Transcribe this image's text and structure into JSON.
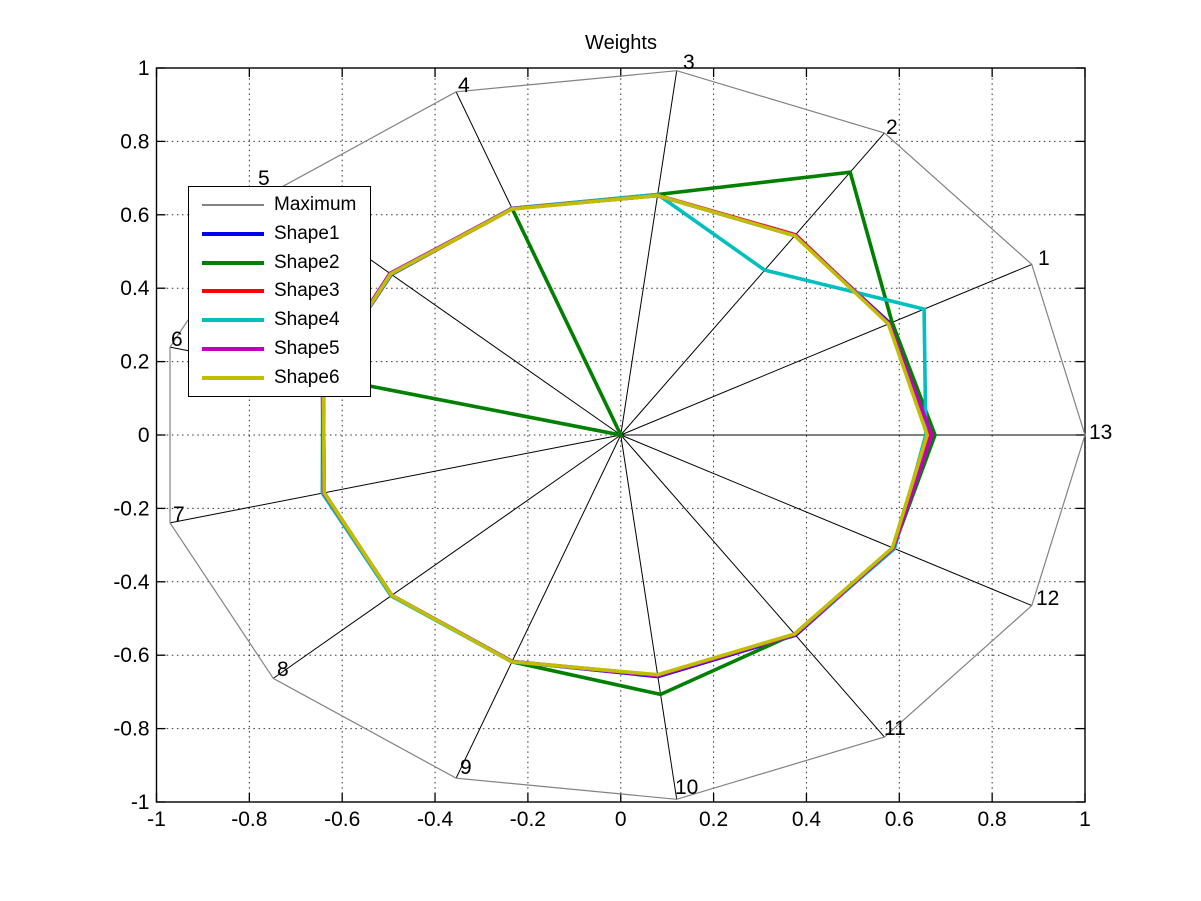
{
  "title": "Weights",
  "chart_data": {
    "type": "radar",
    "title": "Weights",
    "xlabel": "",
    "ylabel": "",
    "xlim": [
      -1,
      1
    ],
    "ylim": [
      -1,
      1
    ],
    "grid": true,
    "xticks": [
      "-1",
      "-0.8",
      "-0.6",
      "-0.4",
      "-0.2",
      "0",
      "0.2",
      "0.4",
      "0.6",
      "0.8",
      "1"
    ],
    "yticks": [
      "1",
      "0.8",
      "0.6",
      "0.4",
      "0.2",
      "0",
      "-0.2",
      "-0.4",
      "-0.6",
      "-0.8",
      "-1"
    ],
    "spoke_labels": [
      "1",
      "2",
      "3",
      "4",
      "5",
      "6",
      "7",
      "8",
      "9",
      "10",
      "11",
      "12",
      "13"
    ],
    "legend_position": "northwest",
    "series": [
      {
        "name": "Maximum",
        "color": "#828282",
        "width": 1.2,
        "values": [
          1,
          1,
          1,
          1,
          1,
          1,
          1,
          1,
          1,
          1,
          1,
          1,
          1
        ]
      },
      {
        "name": "Shape1",
        "color": "#0000EE",
        "width": 3.6,
        "values": [
          0.655,
          0.66,
          0.657,
          0.66,
          0.66,
          0.66,
          0.659,
          0.659,
          0.66,
          0.663,
          0.663,
          0.664,
          0.668
        ]
      },
      {
        "name": "Shape2",
        "color": "#008000",
        "width": 3.6,
        "values": [
          0.66,
          0.87,
          0.66,
          0.66,
          0.0,
          0.66,
          0.658,
          0.659,
          0.661,
          0.712,
          0.659,
          0.663,
          0.677
        ]
      },
      {
        "name": "Shape3",
        "color": "#FF0000",
        "width": 3.6,
        "values": [
          0.652,
          0.663,
          0.658,
          0.659,
          0.661,
          0.66,
          0.658,
          0.659,
          0.66,
          0.659,
          0.66,
          0.663,
          0.665
        ]
      },
      {
        "name": "Shape4",
        "color": "#00BFBF",
        "width": 3.6,
        "values": [
          0.738,
          0.546,
          0.66,
          0.661,
          0.661,
          0.661,
          0.662,
          0.661,
          0.661,
          0.66,
          0.661,
          0.666,
          0.657
        ]
      },
      {
        "name": "Shape5",
        "color": "#BF00BF",
        "width": 3.6,
        "values": [
          0.653,
          0.661,
          0.657,
          0.66,
          0.664,
          0.662,
          0.659,
          0.659,
          0.66,
          0.661,
          0.661,
          0.663,
          0.67
        ]
      },
      {
        "name": "Shape6",
        "color": "#BFBF00",
        "width": 3.6,
        "values": [
          0.651,
          0.66,
          0.657,
          0.659,
          0.662,
          0.66,
          0.658,
          0.659,
          0.661,
          0.658,
          0.659,
          0.661,
          0.66
        ]
      }
    ]
  }
}
